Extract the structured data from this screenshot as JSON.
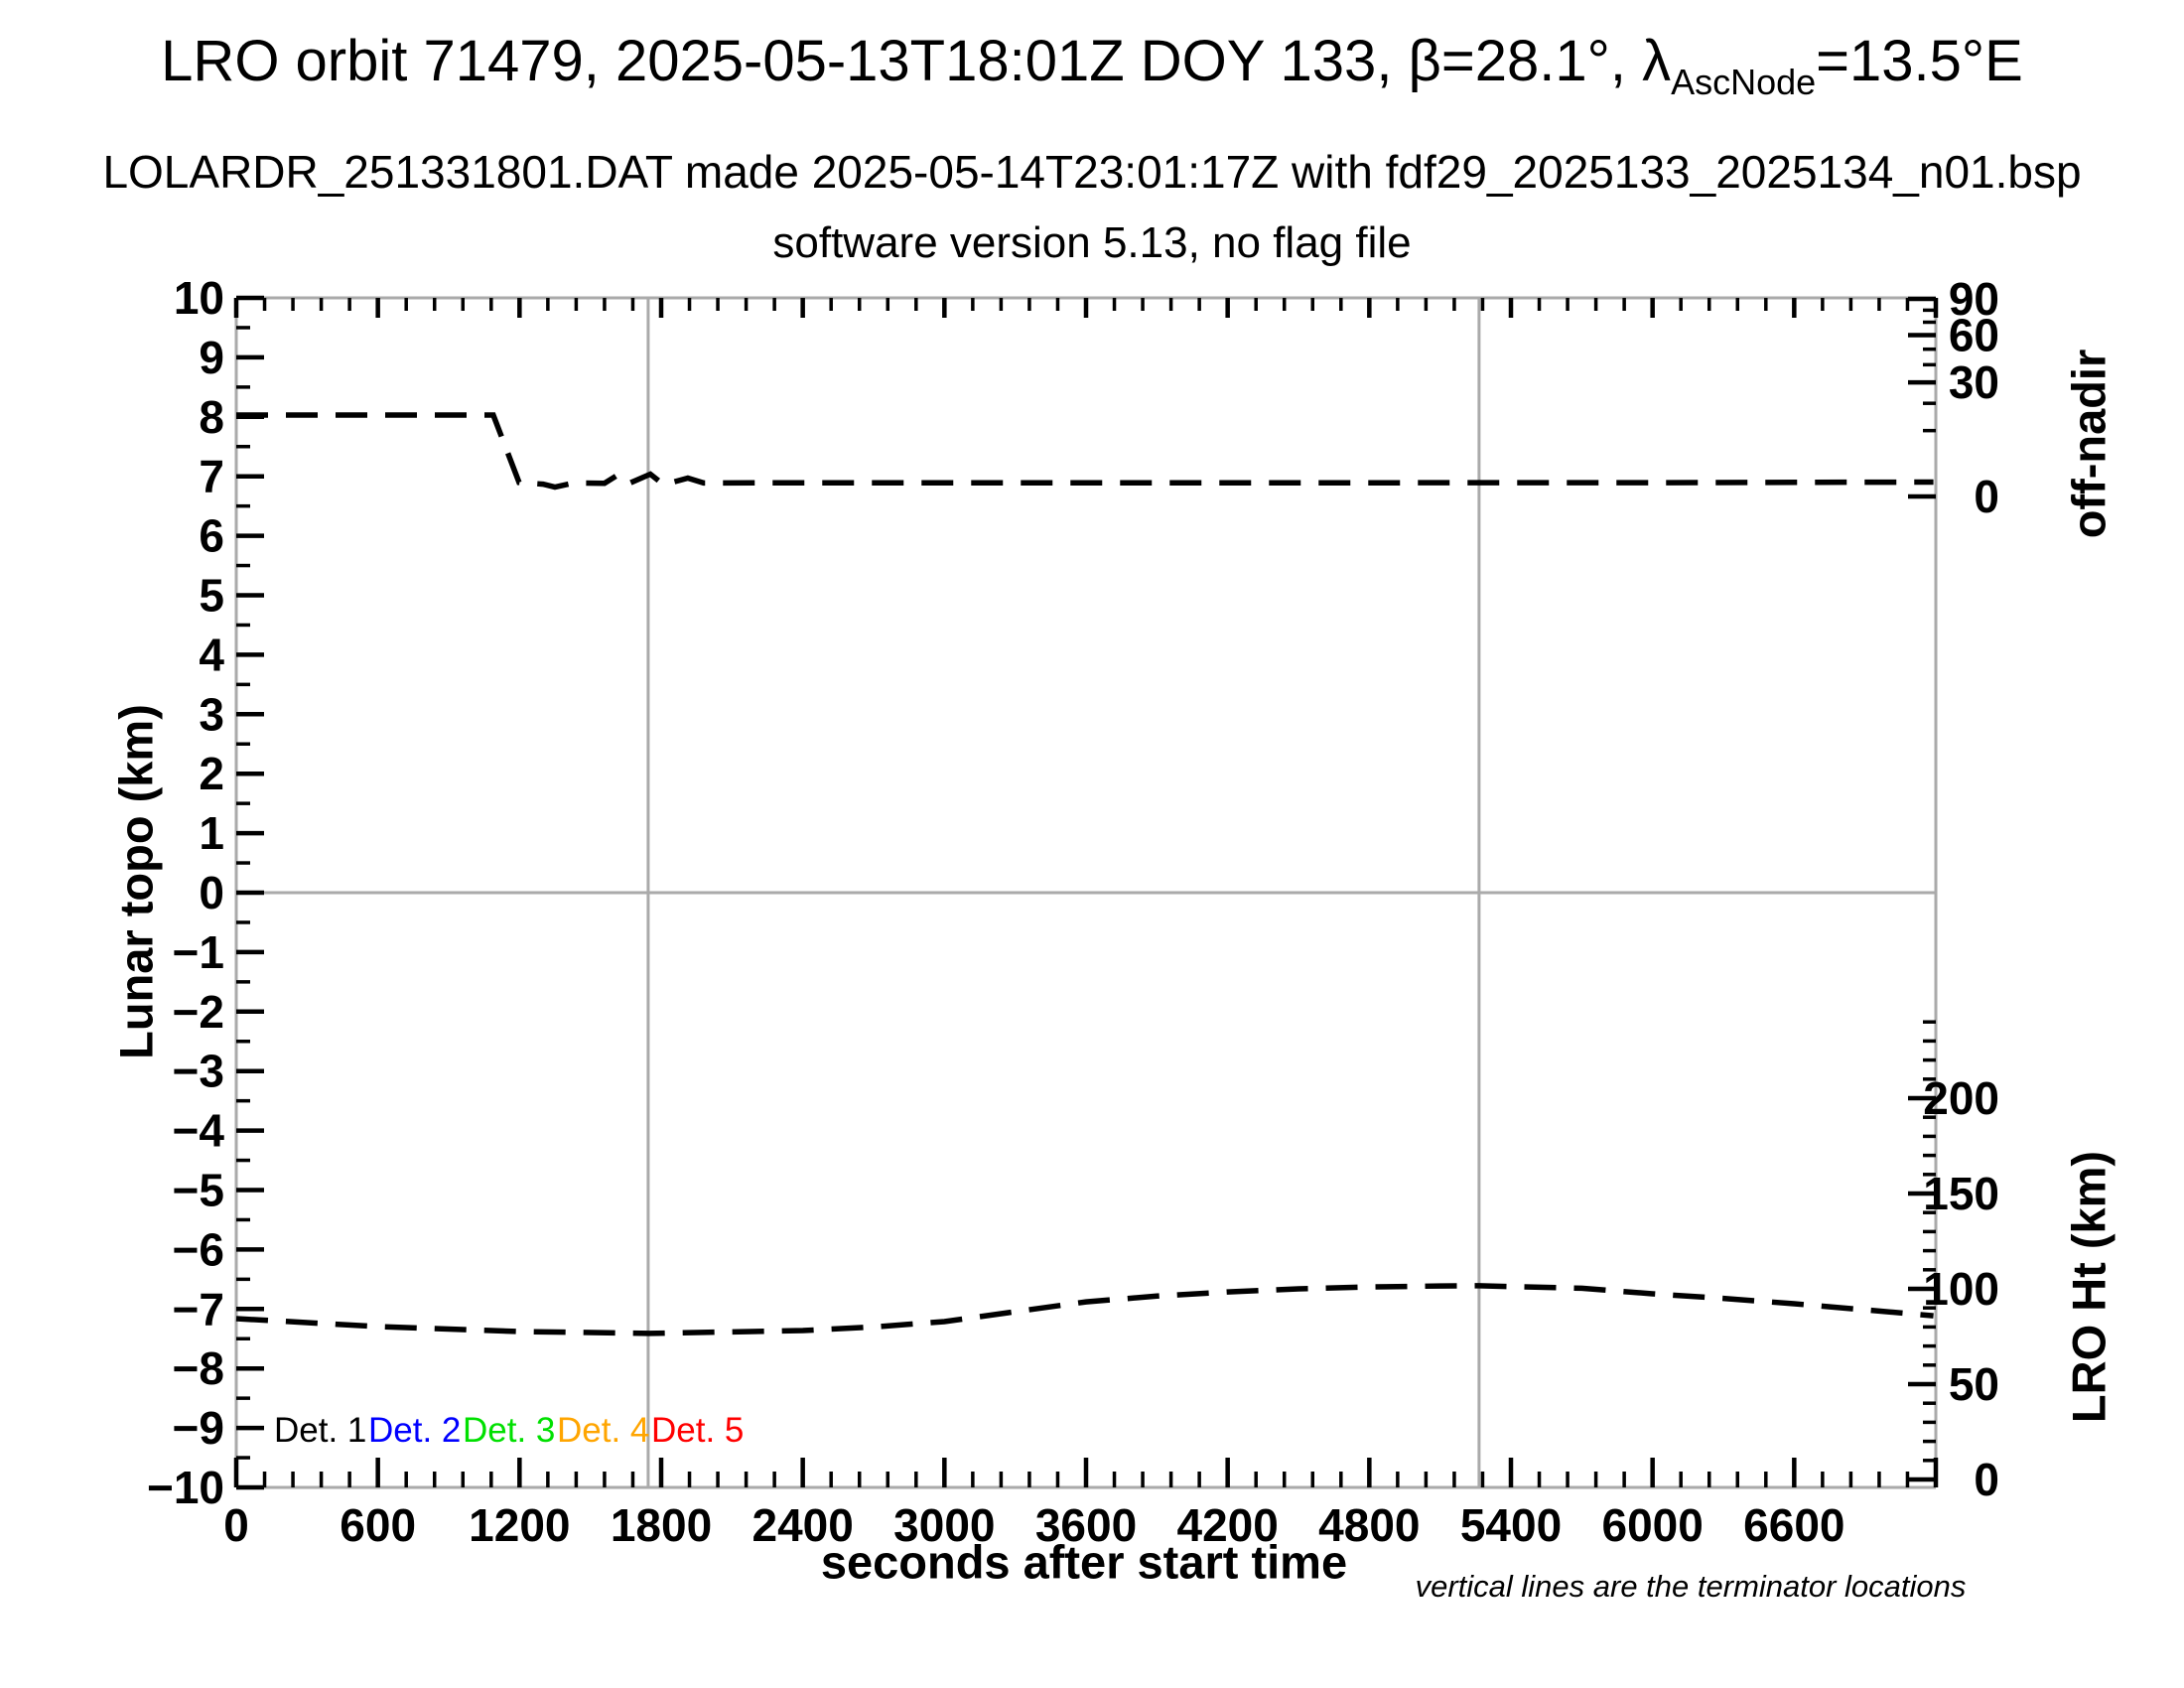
{
  "header": {
    "title_prefix": "LRO orbit 71479, 2025-05-13T18:01Z DOY 133, β=28.1°, λ",
    "title_subscript": "AscNode",
    "title_suffix": "=13.5°E",
    "subtitle": "LOLARDR_251331801.DAT made 2025-05-14T23:01:17Z with fdf29_2025133_2025134_n01.bsp",
    "software_line": "software version 5.13, no flag file"
  },
  "footnote": "vertical lines are the terminator locations",
  "legend": {
    "items": [
      {
        "label": "Det. 1",
        "color": "#000000"
      },
      {
        "label": "Det. 2",
        "color": "#0000ff"
      },
      {
        "label": "Det. 3",
        "color": "#00e000"
      },
      {
        "label": "Det. 4",
        "color": "#ffa500"
      },
      {
        "label": "Det. 5",
        "color": "#ff0000"
      }
    ]
  },
  "chart_data": {
    "type": "line",
    "xlabel": "seconds after start time",
    "x_range": [
      0,
      7200
    ],
    "x_tick_values": [
      0,
      600,
      1200,
      1800,
      2400,
      3000,
      3600,
      4200,
      4800,
      5400,
      6000,
      6600
    ],
    "x_tick_labels": [
      "0",
      "600",
      "1200",
      "1800",
      "2400",
      "3000",
      "3600",
      "4200",
      "4800",
      "5400",
      "6000",
      "6600"
    ],
    "x_extra_major_ticks": [
      7200
    ],
    "x_minor_step": 120,
    "left_axis": {
      "label": "Lunar topo (km)",
      "range": [
        -10,
        10
      ],
      "tick_values": [
        10,
        9,
        8,
        7,
        6,
        5,
        4,
        3,
        2,
        1,
        0,
        -1,
        -2,
        -3,
        -4,
        -5,
        -6,
        -7,
        -8,
        -9,
        -10
      ],
      "tick_labels": [
        "10",
        "9",
        "8",
        "7",
        "6",
        "5",
        "4",
        "3",
        "2",
        "1",
        "0",
        "−1",
        "−2",
        "−3",
        "−4",
        "−5",
        "−6",
        "−7",
        "−8",
        "−9",
        "−10"
      ],
      "minor_step": 0.5
    },
    "right_top_axis": {
      "label": "off-nadir",
      "unit": "degrees",
      "scale": "sqrt",
      "tick_values": [
        90,
        60,
        30,
        0
      ],
      "tick_labels": [
        "90",
        "60",
        "30",
        "0"
      ],
      "minor_tick_values": [
        80,
        70,
        50,
        40,
        20,
        10
      ]
    },
    "right_bottom_axis": {
      "label": "LRO Ht (km)",
      "tick_values": [
        200,
        150,
        100,
        50,
        0
      ],
      "tick_labels": [
        "200",
        "150",
        "100",
        "50",
        "0"
      ],
      "minor_range": [
        0,
        240
      ],
      "minor_step": 10
    },
    "horizontal_reference_line": 0,
    "terminator_lines_s": [
      1745,
      5265
    ],
    "grid_color": "#aaaaaa",
    "line_color": "#000000",
    "series": [
      {
        "name": "off-nadir angle",
        "axis": "right_top",
        "line_style": "dashed",
        "color": "#000000",
        "points": [
          [
            0,
            15.3
          ],
          [
            1089,
            15.3
          ],
          [
            1198,
            0.45
          ],
          [
            1300,
            0.35
          ],
          [
            1350,
            0.2
          ],
          [
            1430,
            0.42
          ],
          [
            1560,
            0.4
          ],
          [
            1615,
            1.05
          ],
          [
            1665,
            0.4
          ],
          [
            1754,
            1.15
          ],
          [
            1810,
            0.32
          ],
          [
            1913,
            0.78
          ],
          [
            1980,
            0.42
          ],
          [
            2400,
            0.43
          ],
          [
            3600,
            0.43
          ],
          [
            4800,
            0.43
          ],
          [
            6000,
            0.44
          ],
          [
            7190,
            0.48
          ]
        ]
      },
      {
        "name": "LRO height",
        "axis": "right_bottom",
        "line_style": "dashed",
        "color": "#000000",
        "points": [
          [
            0,
            84.4
          ],
          [
            600,
            80.2
          ],
          [
            1200,
            77.6
          ],
          [
            1750,
            76.6
          ],
          [
            2400,
            78.1
          ],
          [
            2700,
            80.0
          ],
          [
            3000,
            82.8
          ],
          [
            3300,
            88.0
          ],
          [
            3600,
            93.2
          ],
          [
            3900,
            96.2
          ],
          [
            4200,
            98.4
          ],
          [
            4500,
            100.0
          ],
          [
            4800,
            101.0
          ],
          [
            5100,
            101.5
          ],
          [
            5265,
            101.6
          ],
          [
            5700,
            100.3
          ],
          [
            6000,
            97.4
          ],
          [
            6300,
            95.0
          ],
          [
            6600,
            92.2
          ],
          [
            6900,
            89.0
          ],
          [
            7190,
            85.9
          ]
        ]
      },
      {
        "name": "Det. 1",
        "color": "#000000",
        "points": []
      },
      {
        "name": "Det. 2",
        "color": "#0000ff",
        "points": []
      },
      {
        "name": "Det. 3",
        "color": "#00e000",
        "points": []
      },
      {
        "name": "Det. 4",
        "color": "#ffa500",
        "points": []
      },
      {
        "name": "Det. 5",
        "color": "#ff0000",
        "points": []
      }
    ]
  }
}
